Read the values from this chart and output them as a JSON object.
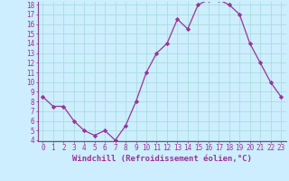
{
  "x": [
    0,
    1,
    2,
    3,
    4,
    5,
    6,
    7,
    8,
    9,
    10,
    11,
    12,
    13,
    14,
    15,
    16,
    17,
    18,
    19,
    20,
    21,
    22,
    23
  ],
  "y": [
    8.5,
    7.5,
    7.5,
    6.0,
    5.0,
    4.5,
    5.0,
    4.0,
    5.5,
    8.0,
    11.0,
    13.0,
    14.0,
    16.5,
    15.5,
    18.0,
    18.5,
    18.5,
    18.0,
    17.0,
    14.0,
    12.0,
    10.0,
    8.5
  ],
  "line_color": "#993399",
  "marker": "D",
  "marker_size": 2.2,
  "bg_color": "#cceeff",
  "grid_color": "#aadddd",
  "xlabel": "Windchill (Refroidissement éolien,°C)",
  "ylim": [
    4,
    18
  ],
  "xlim": [
    -0.5,
    23.5
  ],
  "yticks": [
    4,
    5,
    6,
    7,
    8,
    9,
    10,
    11,
    12,
    13,
    14,
    15,
    16,
    17,
    18
  ],
  "xticks": [
    0,
    1,
    2,
    3,
    4,
    5,
    6,
    7,
    8,
    9,
    10,
    11,
    12,
    13,
    14,
    15,
    16,
    17,
    18,
    19,
    20,
    21,
    22,
    23
  ],
  "tick_color": "#993399",
  "axis_color": "#993399",
  "label_fontsize": 6.5,
  "tick_fontsize": 5.5
}
